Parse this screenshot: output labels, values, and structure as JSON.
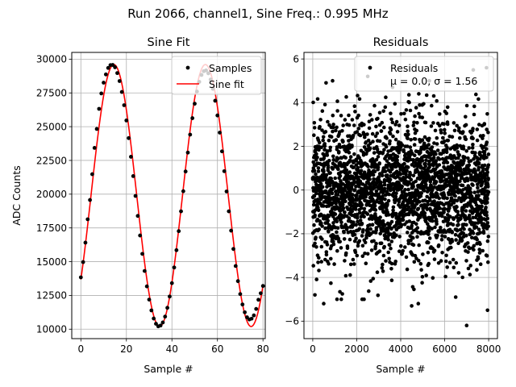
{
  "figure": {
    "suptitle": "Run 2066, channel1, Sine Freq.: 0.995 MHz"
  },
  "chart_data": [
    {
      "type": "scatter+line",
      "title": "Sine Fit",
      "xlabel": "Sample #",
      "ylabel": "ADC Counts",
      "xlim": [
        -4,
        81
      ],
      "ylim": [
        9300,
        30500
      ],
      "xticks": [
        0,
        20,
        40,
        60,
        80
      ],
      "yticks": [
        10000,
        12500,
        15000,
        17500,
        20000,
        22500,
        25000,
        27500,
        30000
      ],
      "grid": true,
      "legend_position": "top-right",
      "fit_model": {
        "amplitude": 9700,
        "offset": 19900,
        "period": 40.2,
        "peak_x": 14.5
      },
      "series": [
        {
          "name": "Samples",
          "kind": "scatter",
          "color": "#000000",
          "x": [
            0,
            1,
            2,
            3,
            4,
            5,
            6,
            7,
            8,
            9,
            10,
            11,
            12,
            13,
            14,
            15,
            16,
            17,
            18,
            19,
            20,
            21,
            22,
            23,
            24,
            25,
            26,
            27,
            28,
            29,
            30,
            31,
            32,
            33,
            34,
            35,
            36,
            37,
            38,
            39,
            40,
            41,
            42,
            43,
            44,
            45,
            46,
            47,
            48,
            49,
            50,
            51,
            52,
            53,
            54,
            55,
            56,
            57,
            58,
            59,
            60,
            61,
            62,
            63,
            64,
            65,
            66,
            67,
            68,
            69,
            70,
            71,
            72,
            73,
            74,
            75,
            76,
            77,
            78,
            79,
            80
          ],
          "y": [
            13840,
            14970,
            16410,
            18140,
            19570,
            21480,
            23430,
            24830,
            26320,
            27460,
            28260,
            28870,
            29350,
            29560,
            29570,
            29400,
            28970,
            28380,
            27570,
            26590,
            25460,
            24150,
            22770,
            21340,
            19870,
            18390,
            16940,
            15580,
            14310,
            13170,
            12190,
            11390,
            10790,
            10400,
            10210,
            10270,
            10500,
            10930,
            11580,
            12420,
            13410,
            14570,
            15850,
            17260,
            18730,
            20220,
            21680,
            23080,
            24410,
            25630,
            26700,
            27600,
            28320,
            28830,
            29110,
            29170,
            28950,
            28490,
            27800,
            26920,
            25830,
            24560,
            23170,
            21700,
            20200,
            18730,
            17300,
            15940,
            14680,
            13560,
            12600,
            11830,
            11250,
            10880,
            10720,
            10780,
            11020,
            11500,
            12180,
            12660,
            13200
          ]
        },
        {
          "name": "Sine fit",
          "kind": "line",
          "color": "#ff0000"
        }
      ]
    },
    {
      "type": "scatter",
      "title": "Residuals",
      "xlabel": "Sample #",
      "ylabel": "",
      "xlim": [
        -400,
        8400
      ],
      "ylim": [
        -6.8,
        6.3
      ],
      "xticks": [
        0,
        2000,
        4000,
        6000,
        8000
      ],
      "yticks": [
        -6,
        -4,
        -2,
        0,
        2,
        4,
        6
      ],
      "grid": true,
      "legend_position": "top-right",
      "series": [
        {
          "name": "Residuals",
          "kind": "scatter",
          "color": "#000000",
          "n_points": 8000,
          "mean": 0.0,
          "sigma": 1.56
        }
      ],
      "legend_lines": [
        "Residuals",
        "μ = 0.0, σ = 1.56"
      ],
      "outliers": [
        {
          "x": 7000,
          "y": -6.2
        },
        {
          "x": 500,
          "y": -5.2
        },
        {
          "x": 7950,
          "y": -5.5
        },
        {
          "x": 4800,
          "y": -5.2
        },
        {
          "x": 4500,
          "y": -5.3
        },
        {
          "x": 2500,
          "y": 5.2
        },
        {
          "x": 7900,
          "y": 5.6
        },
        {
          "x": 7300,
          "y": 5.5
        },
        {
          "x": 900,
          "y": 5.0
        },
        {
          "x": 5300,
          "y": 5.0
        },
        {
          "x": 100,
          "y": -4.8
        },
        {
          "x": 6500,
          "y": -4.9
        }
      ]
    }
  ]
}
